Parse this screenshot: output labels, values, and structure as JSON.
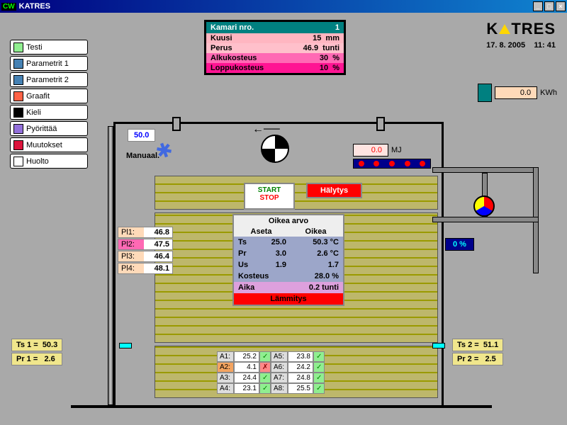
{
  "title": "KATRES",
  "logo": "K  TRES",
  "date": "17.  8. 2005",
  "time": "11: 41",
  "sidebar": [
    {
      "label": "Testi",
      "ico": "#90ee90"
    },
    {
      "label": "Parametrit 1",
      "ico": "#4682b4"
    },
    {
      "label": "Parametrit 2",
      "ico": "#4682b4"
    },
    {
      "label": "Graafit",
      "ico": "#ff6347"
    },
    {
      "label": "Kieli",
      "ico": "#000"
    },
    {
      "label": "Pyörittää",
      "ico": "#9370db"
    },
    {
      "label": "Muutokset",
      "ico": "#dc143c"
    },
    {
      "label": "Huolto",
      "ico": "#fff"
    }
  ],
  "chamber_head": "Kamari nro.",
  "chamber_no": "1",
  "chamber_rows": [
    {
      "l": "Kuusi",
      "v": "15",
      "u": "mm"
    },
    {
      "l": "Perus",
      "v": "46.9",
      "u": "tunti"
    },
    {
      "l": "Alkukosteus",
      "v": "30",
      "u": "%"
    },
    {
      "l": "Loppukosteus",
      "v": "10",
      "u": "%"
    }
  ],
  "kwh_val": "0.0",
  "kwh_unit": "KWh",
  "humidity": "50.0",
  "manual": "Manuaal.",
  "mj_val": "0.0",
  "mj_unit": "MJ",
  "start": "START",
  "stop": "STOP",
  "halytys": "Hälytys",
  "pl": [
    {
      "l": "Pl1:",
      "v": "46.8",
      "hl": false
    },
    {
      "l": "Pl2:",
      "v": "47.5",
      "hl": true
    },
    {
      "l": "Pl3:",
      "v": "46.4",
      "hl": false
    },
    {
      "l": "Pl4:",
      "v": "48.1",
      "hl": false
    }
  ],
  "oikea": {
    "title": "Oikea arvo",
    "col1": "Aseta",
    "col2": "Oikea",
    "rows": [
      {
        "p": "Ts",
        "a": "25.0",
        "o": "50.3",
        "u": "°C"
      },
      {
        "p": "Pr",
        "a": "3.0",
        "o": "2.6",
        "u": "°C"
      },
      {
        "p": "Us",
        "a": "1.9",
        "o": "1.7",
        "u": ""
      }
    ],
    "kost_l": "Kosteus",
    "kost_v": "28.0 %",
    "aika_l": "Aika",
    "aika_v": "0.2 tunti",
    "lam": "Lämmitys"
  },
  "sensors": [
    {
      "l": "A1:",
      "v": "25.2",
      "ok": true,
      "hl": false
    },
    {
      "l": "A2:",
      "v": "4.1",
      "ok": false,
      "hl": true
    },
    {
      "l": "A3:",
      "v": "24.4",
      "ok": true,
      "hl": false
    },
    {
      "l": "A4:",
      "v": "23.1",
      "ok": true,
      "hl": false
    },
    {
      "l": "A5:",
      "v": "23.8",
      "ok": true,
      "hl": false
    },
    {
      "l": "A6:",
      "v": "24.2",
      "ok": true,
      "hl": false
    },
    {
      "l": "A7:",
      "v": "24.8",
      "ok": true,
      "hl": false
    },
    {
      "l": "A8:",
      "v": "25.5",
      "ok": true,
      "hl": false
    }
  ],
  "pct": "0 %",
  "ts1_l": "Ts 1 =",
  "ts1_v": "50.3",
  "pr1_l": "Pr 1 =",
  "pr1_v": "2.6",
  "ts2_l": "Ts 2 =",
  "ts2_v": "51.1",
  "pr2_l": "Pr 2 =",
  "pr2_v": "2.5"
}
